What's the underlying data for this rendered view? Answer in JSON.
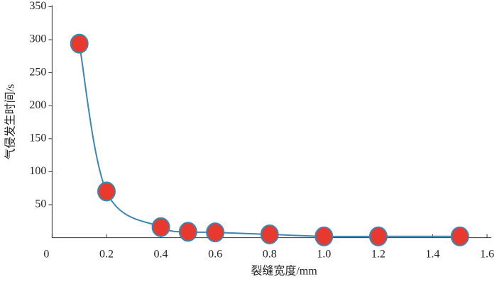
{
  "chart_data": {
    "type": "scatter",
    "x_label": "裂缝宽度/mm",
    "y_label": "气侵发生时间/s",
    "x": [
      0.1,
      0.2,
      0.4,
      0.5,
      0.6,
      0.8,
      1.0,
      1.2,
      1.5
    ],
    "series": [
      {
        "color": "#e8392e",
        "line_color": "#3a87b6",
        "values": [
          294,
          70,
          16,
          9,
          8,
          5,
          2,
          2,
          2
        ]
      }
    ],
    "xlim": [
      0,
      1.6
    ],
    "xticks": [
      0,
      0.2,
      0.4,
      0.6,
      0.8,
      {
        "value": 1,
        "label": "1.0"
      },
      1.2,
      1.4,
      1.6
    ],
    "ylim": [
      0,
      350
    ],
    "yticks": [
      50,
      100,
      150,
      200,
      250,
      300,
      350
    ]
  }
}
